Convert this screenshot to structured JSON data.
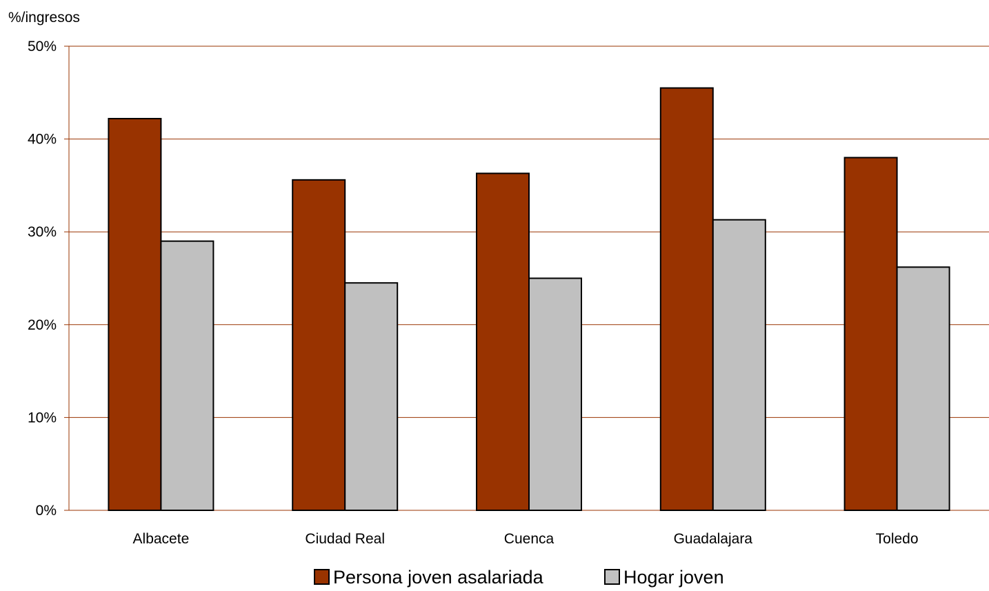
{
  "chart_data": {
    "type": "bar",
    "title": "",
    "ylabel": "%/ingresos",
    "xlabel": "",
    "categories": [
      "Albacete",
      "Ciudad Real",
      "Cuenca",
      "Guadalajara",
      "Toledo"
    ],
    "series": [
      {
        "name": "Persona joven asalariada",
        "color": "#993300",
        "values": [
          42.2,
          35.6,
          36.3,
          45.5,
          38.0
        ]
      },
      {
        "name": "Hogar joven",
        "color": "#c0c0c0",
        "values": [
          29.0,
          24.5,
          25.0,
          31.3,
          26.2
        ]
      }
    ],
    "ylim": [
      0,
      50
    ],
    "yticks": [
      0,
      10,
      20,
      30,
      40,
      50
    ],
    "ytick_labels": [
      "0%",
      "10%",
      "20%",
      "30%",
      "40%",
      "50%"
    ],
    "grid": true,
    "grid_color": "#993300",
    "legend_position": "bottom"
  }
}
